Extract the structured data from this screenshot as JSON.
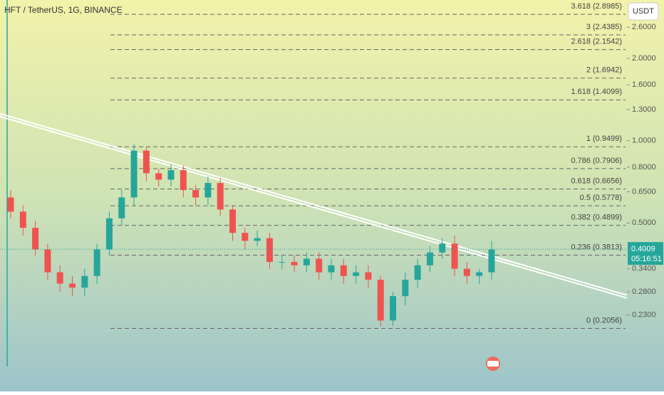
{
  "chart_data": {
    "type": "candlestick",
    "title": "HFT / TetherUS, 1G, BINANCE",
    "currency_button": "USDT",
    "log_scale": true,
    "ylim": [
      0.13,
      3.27
    ],
    "yticks": [
      {
        "value": 2.6,
        "label": "2.6000"
      },
      {
        "value": 2,
        "label": "2.0000"
      },
      {
        "value": 1.6,
        "label": "1.6000"
      },
      {
        "value": 1.3,
        "label": "1.3000"
      },
      {
        "value": 1,
        "label": "1.0000"
      },
      {
        "value": 0.8,
        "label": "0.8000"
      },
      {
        "value": 0.65,
        "label": "0.6500"
      },
      {
        "value": 0.5,
        "label": "0.5000"
      },
      {
        "value": 0.34,
        "label": "0.3400"
      },
      {
        "value": 0.28,
        "label": "0.2800"
      },
      {
        "value": 0.23,
        "label": "0.2300"
      }
    ],
    "current_price": {
      "value": 0.4009,
      "label": "0.4009"
    },
    "countdown": "05:16:51",
    "trendline": [
      1.24,
      0.269
    ],
    "fib_levels": [
      {
        "label": "3.618 (2.8985)",
        "value": 2.8985
      },
      {
        "label": "3 (2.4385)",
        "value": 2.4385
      },
      {
        "label": "2.618 (2.1542)",
        "value": 2.1542
      },
      {
        "label": "2 (1.6942)",
        "value": 1.6942
      },
      {
        "label": "1.618 (1.4099)",
        "value": 1.4099
      },
      {
        "label": "1 (0.9499)",
        "value": 0.9499
      },
      {
        "label": "0.786 (0.7906)",
        "value": 0.7906
      },
      {
        "label": "0.618 (0.6656)",
        "value": 0.6656
      },
      {
        "label": "0.5 (0.5778)",
        "value": 0.5778
      },
      {
        "label": "0.382 (0.4899)",
        "value": 0.4899
      },
      {
        "label": "0.236 (0.3813)",
        "value": 0.3813
      },
      {
        "label": "0 (0.2056)",
        "value": 0.2056
      }
    ],
    "up_color": "#26a69a",
    "down_color": "#ef5350",
    "open": [
      0.62,
      0.55,
      0.48,
      0.4,
      0.33,
      0.3,
      0.29,
      0.32,
      0.4,
      0.52,
      0.62,
      0.92,
      0.76,
      0.72,
      0.78,
      0.66,
      0.62,
      0.7,
      0.56,
      0.46,
      0.43,
      0.44,
      0.36,
      0.36,
      0.35,
      0.37,
      0.33,
      0.35,
      0.32,
      0.33,
      0.31,
      0.22,
      0.27,
      0.31,
      0.35,
      0.39,
      0.42,
      0.34,
      0.32,
      0.33
    ],
    "high": [
      0.66,
      0.58,
      0.51,
      0.42,
      0.35,
      0.32,
      0.34,
      0.42,
      0.55,
      0.66,
      0.97,
      0.95,
      0.79,
      0.82,
      0.81,
      0.69,
      0.74,
      0.73,
      0.58,
      0.48,
      0.47,
      0.46,
      0.38,
      0.38,
      0.39,
      0.39,
      0.37,
      0.37,
      0.35,
      0.35,
      0.32,
      0.28,
      0.33,
      0.37,
      0.41,
      0.44,
      0.45,
      0.36,
      0.34,
      0.43
    ],
    "low": [
      0.52,
      0.45,
      0.38,
      0.31,
      0.28,
      0.27,
      0.27,
      0.3,
      0.38,
      0.49,
      0.58,
      0.71,
      0.68,
      0.68,
      0.62,
      0.58,
      0.58,
      0.53,
      0.43,
      0.4,
      0.41,
      0.34,
      0.34,
      0.33,
      0.33,
      0.31,
      0.31,
      0.3,
      0.3,
      0.29,
      0.21,
      0.21,
      0.25,
      0.29,
      0.33,
      0.37,
      0.32,
      0.3,
      0.3,
      0.31
    ],
    "close": [
      0.55,
      0.48,
      0.4,
      0.33,
      0.3,
      0.29,
      0.32,
      0.4,
      0.52,
      0.62,
      0.92,
      0.76,
      0.72,
      0.78,
      0.66,
      0.62,
      0.7,
      0.56,
      0.46,
      0.43,
      0.44,
      0.36,
      0.36,
      0.35,
      0.37,
      0.33,
      0.35,
      0.32,
      0.33,
      0.31,
      0.22,
      0.27,
      0.31,
      0.35,
      0.39,
      0.42,
      0.34,
      0.32,
      0.33,
      0.4
    ]
  }
}
